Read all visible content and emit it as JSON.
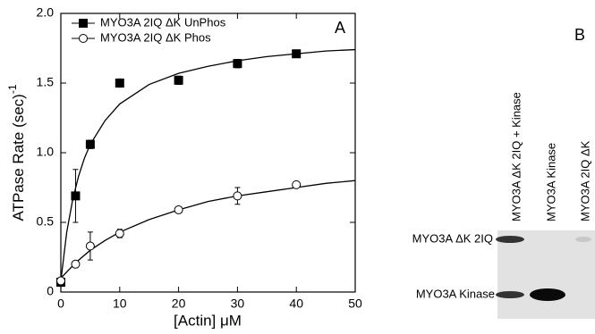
{
  "chart_data": {
    "type": "scatter",
    "panel_label": "A",
    "xlabel": "[Actin] μM",
    "ylabel": "ATPase Rate (sec)",
    "ylabel_superscript": "-1",
    "xlim": [
      0,
      50
    ],
    "xticks": [
      0,
      10,
      20,
      30,
      40,
      50
    ],
    "ylim": [
      0,
      2.0
    ],
    "yticks": [
      0,
      0.5,
      {
        "value": 1.0,
        "label": "1.0"
      },
      1.5,
      {
        "value": 2.0,
        "label": "2.0"
      }
    ],
    "legend": "upper left",
    "series": [
      {
        "name": "MYO3A 2IQ ΔK UnPhos",
        "marker": "square",
        "color": "#000000",
        "x": [
          0,
          2.5,
          5,
          10,
          20,
          30,
          40
        ],
        "values": [
          0.07,
          0.69,
          1.06,
          1.5,
          1.52,
          1.64,
          1.71
        ],
        "errors": [
          0.02,
          0.19,
          0.03,
          0.03,
          0.03,
          0.03,
          0.02
        ],
        "fit_x": [
          0,
          1,
          2,
          3,
          4,
          5,
          7.5,
          10,
          15,
          20,
          25,
          30,
          35,
          40,
          45,
          50
        ],
        "fit_values": [
          0.08,
          0.43,
          0.66,
          0.83,
          0.96,
          1.06,
          1.23,
          1.35,
          1.49,
          1.57,
          1.62,
          1.66,
          1.69,
          1.71,
          1.73,
          1.74
        ]
      },
      {
        "name": "MYO3A 2IQ ΔK Phos",
        "marker": "circle",
        "color": "#000000",
        "x": [
          0,
          2.5,
          5,
          10,
          20,
          30,
          40
        ],
        "values": [
          0.08,
          0.2,
          0.33,
          0.42,
          0.59,
          0.69,
          0.77
        ],
        "errors": [
          0.02,
          0.02,
          0.1,
          0.03,
          0.02,
          0.06,
          0.02
        ],
        "fit_x": [
          0,
          2.5,
          5,
          7.5,
          10,
          15,
          20,
          25,
          30,
          35,
          40,
          45,
          50
        ],
        "fit_values": [
          0.1,
          0.21,
          0.3,
          0.37,
          0.43,
          0.52,
          0.59,
          0.65,
          0.69,
          0.72,
          0.75,
          0.78,
          0.8
        ]
      }
    ]
  },
  "blot": {
    "panel_label": "B",
    "lanes": [
      "MYO3A ΔK 2IQ + Kinase",
      "MYO3A  Kinase",
      "MYO3A 2IQ ΔK"
    ],
    "rows": [
      "MYO3A ΔK 2IQ",
      "MYO3A Kinase"
    ]
  }
}
